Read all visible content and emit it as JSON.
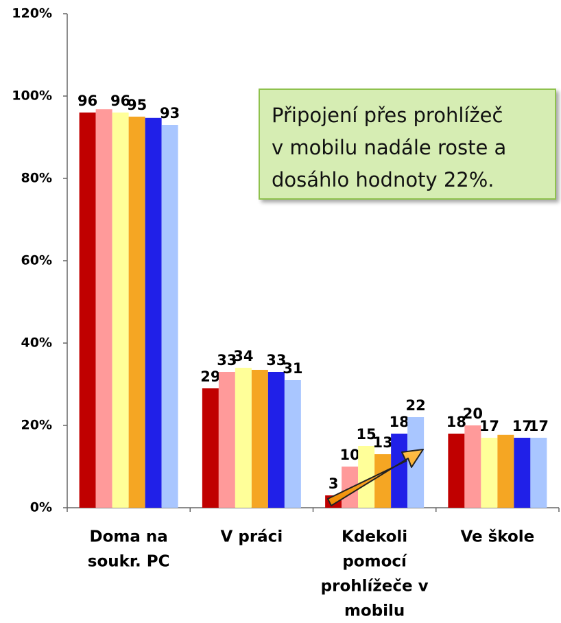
{
  "chart_data": {
    "type": "bar",
    "categories": [
      [
        "Doma na",
        "soukr. PC"
      ],
      [
        "V práci"
      ],
      [
        "Kdekoli",
        "pomocí",
        "prohlížeče v",
        "mobilu"
      ],
      [
        "Ve škole"
      ]
    ],
    "series": [
      {
        "color": "#c00000",
        "values": [
          96,
          29,
          3,
          18
        ],
        "value_labels": [
          "96",
          "29",
          "3",
          "18"
        ]
      },
      {
        "color": "#ff9a9a",
        "values": [
          96.8,
          33,
          10,
          20
        ],
        "value_labels": [
          null,
          "33",
          "10",
          "20"
        ]
      },
      {
        "color": "#ffff99",
        "values": [
          96,
          34,
          15,
          17
        ],
        "value_labels": [
          "96",
          "34",
          "15",
          "17"
        ]
      },
      {
        "color": "#f5a623",
        "values": [
          95,
          33.5,
          13,
          17.7
        ],
        "value_labels": [
          "95",
          null,
          "13",
          null
        ]
      },
      {
        "color": "#2020e8",
        "values": [
          94.7,
          33,
          18,
          17
        ],
        "value_labels": [
          null,
          "33",
          "18",
          "17"
        ]
      },
      {
        "color": "#a9c6ff",
        "values": [
          93,
          31,
          22,
          17
        ],
        "value_labels": [
          "93",
          "31",
          "22",
          "17"
        ]
      }
    ],
    "ylim": [
      0,
      120
    ],
    "yticks": [
      {
        "value": 0,
        "label": "0%"
      },
      {
        "value": 20,
        "label": "20%"
      },
      {
        "value": 40,
        "label": "40%"
      },
      {
        "value": 60,
        "label": "60%"
      },
      {
        "value": 80,
        "label": "80%"
      },
      {
        "value": 100,
        "label": "100%"
      },
      {
        "value": 120,
        "label": "120%"
      }
    ],
    "annotation": [
      "Připojení přes prohlížeč",
      "v mobilu nadále roste a",
      "dosáhlo hodnoty 22%."
    ]
  }
}
